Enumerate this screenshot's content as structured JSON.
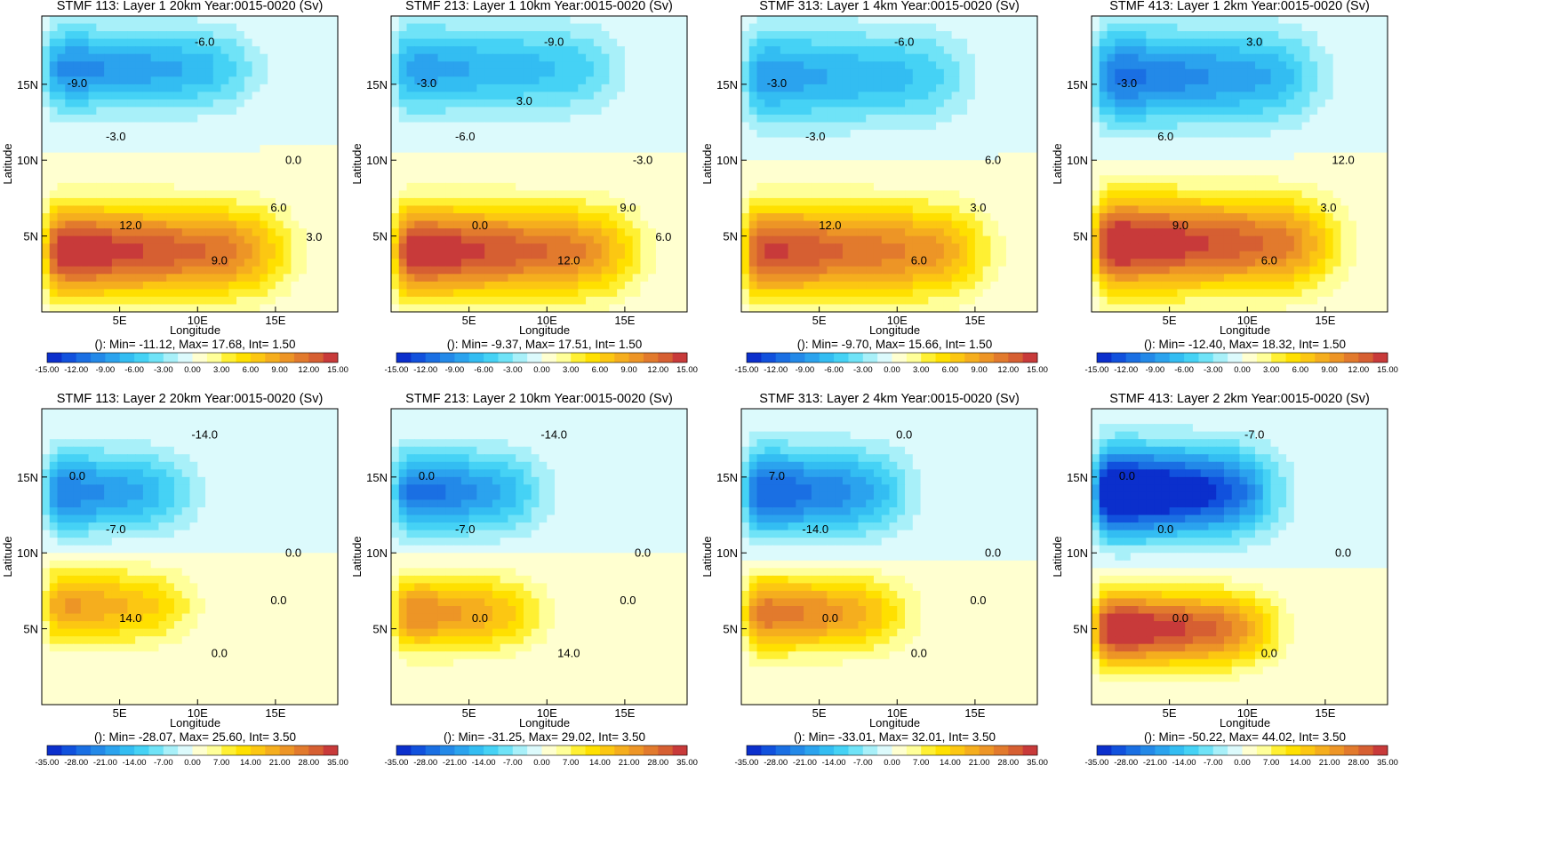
{
  "figure": {
    "row_scales": [
      {
        "levels": [
          -15,
          -13.5,
          -12,
          -10.5,
          -9,
          -7.5,
          -6,
          -4.5,
          -3,
          -1.5,
          0,
          1.5,
          3,
          4.5,
          6,
          7.5,
          9,
          10.5,
          12,
          13.5,
          15
        ],
        "tick_labels": [
          "-15.00",
          "-12.00",
          "-9.00",
          "-6.00",
          "-3.00",
          "0.00",
          "3.00",
          "6.00",
          "9.00",
          "12.00",
          "15.00"
        ]
      },
      {
        "levels": [
          -35,
          -31.5,
          -28,
          -24.5,
          -21,
          -17.5,
          -14,
          -10.5,
          -7,
          -3.5,
          0,
          3.5,
          7,
          10.5,
          14,
          17.5,
          21,
          24.5,
          28,
          31.5,
          35
        ],
        "tick_labels": [
          "-35.00",
          "-28.00",
          "-21.00",
          "-14.00",
          "-7.00",
          "0.00",
          "7.00",
          "14.00",
          "21.00",
          "28.00",
          "35.00"
        ]
      }
    ],
    "palette": [
      "#0b2fcc",
      "#1151dd",
      "#1a6fe3",
      "#2389e8",
      "#2ba3ee",
      "#33bdf2",
      "#45d2f5",
      "#6fe3f7",
      "#a8f0f9",
      "#dcfafc",
      "#ffffd0",
      "#ffff99",
      "#fff033",
      "#ffe000",
      "#fcc712",
      "#f5ae1e",
      "#ed9526",
      "#e27a2d",
      "#d65f32",
      "#c83a3a"
    ]
  },
  "chart_data": [
    {
      "type": "heatmap",
      "title": "STMF 113: Layer 1 20km Year:0015-0020 (Sv)",
      "xlabel": "Longitude",
      "ylabel": "Latitude",
      "xlim": [
        0,
        19
      ],
      "ylim": [
        0,
        19.5
      ],
      "xticks": [
        "5E",
        "10E",
        "15E"
      ],
      "yticks": [
        "5N",
        "10N",
        "15N"
      ],
      "stats": "(): Min= -11.12, Max= 17.68, Int= 1.50",
      "north_gyre": {
        "amp": -11.1,
        "center_lat": 16.0,
        "width_lat": 2.6,
        "extent_lon": 13
      },
      "south_gyre": {
        "amp": 17.7,
        "center_lat": 4.0,
        "width_lat": 2.9,
        "extent_lon": 15
      },
      "labels": [
        "-9.0",
        "-6.0",
        "-3.0",
        "0.0",
        "12.0",
        "9.0",
        "6.0",
        "3.0"
      ]
    },
    {
      "type": "heatmap",
      "title": "STMF 213: Layer 1 10km Year:0015-0020 (Sv)",
      "xlabel": "Longitude",
      "ylabel": "Latitude",
      "xlim": [
        0,
        19
      ],
      "ylim": [
        0,
        19.5
      ],
      "xticks": [
        "5E",
        "10E",
        "15E"
      ],
      "yticks": [
        "5N",
        "10N",
        "15N"
      ],
      "stats": "(): Min= -9.37, Max= 17.51, Int= 1.50",
      "north_gyre": {
        "amp": -9.4,
        "center_lat": 16.0,
        "width_lat": 2.8,
        "extent_lon": 14
      },
      "south_gyre": {
        "amp": 17.5,
        "center_lat": 4.0,
        "width_lat": 2.9,
        "extent_lon": 15
      },
      "labels": [
        "-3.0",
        "-9.0",
        "-6.0",
        "-3.0",
        "0.0",
        "12.0",
        "9.0",
        "6.0",
        "3.0"
      ]
    },
    {
      "type": "heatmap",
      "title": "STMF 313: Layer 1 4km Year:0015-0020 (Sv)",
      "xlabel": "Longitude",
      "ylabel": "Latitude",
      "xlim": [
        0,
        19
      ],
      "ylim": [
        0,
        19.5
      ],
      "xticks": [
        "5E",
        "10E",
        "15E"
      ],
      "yticks": [
        "5N",
        "10N",
        "15N"
      ],
      "stats": "(): Min= -9.70, Max= 15.66, Int= 1.50",
      "north_gyre": {
        "amp": -9.7,
        "center_lat": 15.5,
        "width_lat": 3.0,
        "extent_lon": 14
      },
      "south_gyre": {
        "amp": 15.7,
        "center_lat": 4.0,
        "width_lat": 3.0,
        "extent_lon": 15
      },
      "labels": [
        "-3.0",
        "-6.0",
        "-3.0",
        "6.0",
        "12.0",
        "6.0",
        "3.0"
      ]
    },
    {
      "type": "heatmap",
      "title": "STMF 413: Layer 1 2km Year:0015-0020 (Sv)",
      "xlabel": "Longitude",
      "ylabel": "Latitude",
      "xlim": [
        0,
        19
      ],
      "ylim": [
        0,
        19.5
      ],
      "xticks": [
        "5E",
        "10E",
        "15E"
      ],
      "yticks": [
        "5N",
        "10N",
        "15N"
      ],
      "stats": "(): Min= -12.40, Max= 18.32, Int= 1.50",
      "north_gyre": {
        "amp": -12.4,
        "center_lat": 15.5,
        "width_lat": 3.0,
        "extent_lon": 14
      },
      "south_gyre": {
        "amp": 18.3,
        "center_lat": 4.5,
        "width_lat": 3.0,
        "extent_lon": 15
      },
      "labels": [
        "-3.0",
        "3.0",
        "6.0",
        "12.0",
        "9.0",
        "6.0",
        "3.0"
      ]
    },
    {
      "type": "heatmap",
      "title": "STMF 113: Layer 2 20km Year:0015-0020 (Sv)",
      "xlabel": "Longitude",
      "ylabel": "Latitude",
      "xlim": [
        0,
        19
      ],
      "ylim": [
        0,
        19.5
      ],
      "xticks": [
        "5E",
        "10E",
        "15E"
      ],
      "yticks": [
        "5N",
        "10N",
        "15N"
      ],
      "stats": "(): Min= -28.07, Max= 25.60, Int= 3.50",
      "north_gyre": {
        "amp": -28.1,
        "center_lat": 14.0,
        "width_lat": 2.6,
        "extent_lon": 9
      },
      "south_gyre": {
        "amp": 25.6,
        "center_lat": 6.5,
        "width_lat": 2.4,
        "extent_lon": 9
      },
      "labels": [
        "0.0",
        "-14.0",
        "-7.0",
        "0.0",
        "14.0",
        "0.0",
        "0.0"
      ]
    },
    {
      "type": "heatmap",
      "title": "STMF 213: Layer 2 10km Year:0015-0020 (Sv)",
      "xlabel": "Longitude",
      "ylabel": "Latitude",
      "xlim": [
        0,
        19
      ],
      "ylim": [
        0,
        19.5
      ],
      "xticks": [
        "5E",
        "10E",
        "15E"
      ],
      "yticks": [
        "5N",
        "10N",
        "15N"
      ],
      "stats": "(): Min= -31.25, Max= 29.02, Int= 3.50",
      "north_gyre": {
        "amp": -31.3,
        "center_lat": 14.0,
        "width_lat": 2.6,
        "extent_lon": 9
      },
      "south_gyre": {
        "amp": 29.0,
        "center_lat": 6.0,
        "width_lat": 2.4,
        "extent_lon": 9
      },
      "labels": [
        "0.0",
        "-14.0",
        "-7.0",
        "0.0",
        "0.0",
        "14.0",
        "0.0"
      ]
    },
    {
      "type": "heatmap",
      "title": "STMF 313: Layer 2 4km Year:0015-0020 (Sv)",
      "xlabel": "Longitude",
      "ylabel": "Latitude",
      "xlim": [
        0,
        19
      ],
      "ylim": [
        0,
        19.5
      ],
      "xticks": [
        "5E",
        "10E",
        "15E"
      ],
      "yticks": [
        "5N",
        "10N",
        "15N"
      ],
      "stats": "(): Min= -33.01, Max= 32.01, Int= 3.50",
      "north_gyre": {
        "amp": -33.0,
        "center_lat": 14.0,
        "width_lat": 2.8,
        "extent_lon": 10
      },
      "south_gyre": {
        "amp": 32.0,
        "center_lat": 6.0,
        "width_lat": 2.4,
        "extent_lon": 10
      },
      "labels": [
        "7.0",
        "0.0",
        "-14.0",
        "0.0",
        "0.0",
        "0.0",
        "0.0"
      ]
    },
    {
      "type": "heatmap",
      "title": "STMF 413: Layer 2 2km Year:0015-0020 (Sv)",
      "xlabel": "Longitude",
      "ylabel": "Latitude",
      "xlim": [
        0,
        19
      ],
      "ylim": [
        0,
        19.5
      ],
      "xticks": [
        "5E",
        "10E",
        "15E"
      ],
      "yticks": [
        "5N",
        "10N",
        "15N"
      ],
      "stats": "(): Min= -50.22, Max= 44.02, Int= 3.50",
      "north_gyre": {
        "amp": -50.2,
        "center_lat": 14.0,
        "width_lat": 2.8,
        "extent_lon": 11
      },
      "south_gyre": {
        "amp": 44.0,
        "center_lat": 5.0,
        "width_lat": 2.4,
        "extent_lon": 11
      },
      "labels": [
        "0.0",
        "-7.0",
        "0.0",
        "0.0",
        "0.0",
        "0.0"
      ]
    }
  ]
}
